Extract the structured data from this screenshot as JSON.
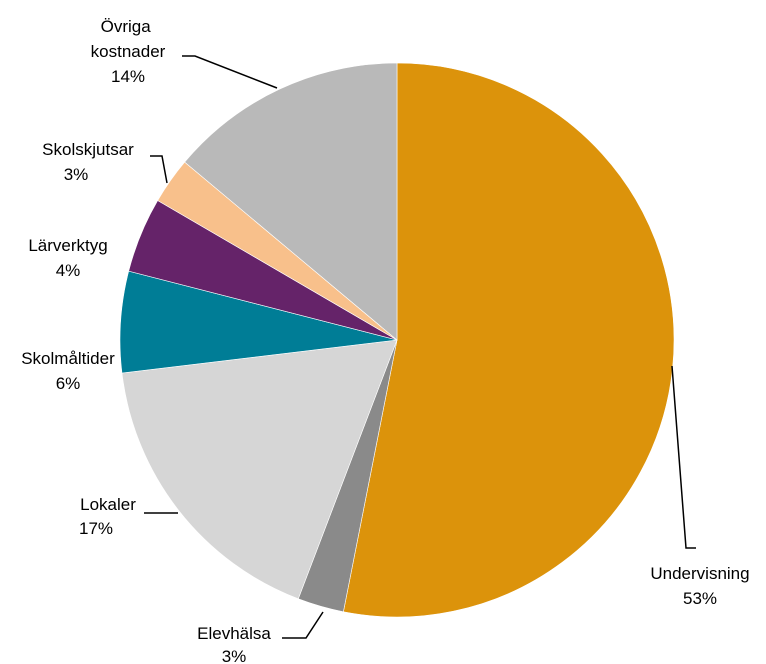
{
  "chart_data": {
    "type": "pie",
    "title": "",
    "slices": [
      {
        "label": "Undervisning",
        "percent_label": "53%",
        "value": 53.1,
        "color": "#DC930B"
      },
      {
        "label": "Elevhälsa",
        "percent_label": "3%",
        "value": 2.7,
        "color": "#8A8A8A"
      },
      {
        "label": "Lokaler",
        "percent_label": "17%",
        "value": 17.3,
        "color": "#D6D6D6"
      },
      {
        "label": "Skolmåltider",
        "percent_label": "6%",
        "value": 5.9,
        "color": "#007D96"
      },
      {
        "label": "Lärverktyg",
        "percent_label": "4%",
        "value": 4.4,
        "color": "#652369"
      },
      {
        "label": "Skolskjutsar",
        "percent_label": "3%",
        "value": 2.7,
        "color": "#F8C08B"
      },
      {
        "label": "Övriga kostnader",
        "percent_label": "14%",
        "value": 13.9,
        "color": "#B9B9B9"
      }
    ],
    "start_angle": "12 o'clock",
    "direction": "clockwise"
  }
}
